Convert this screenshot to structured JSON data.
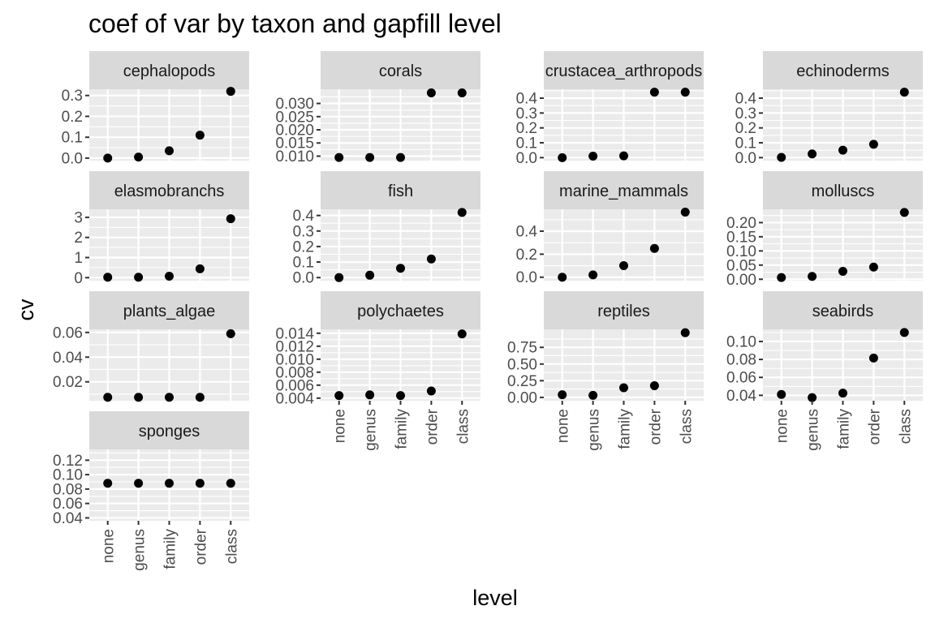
{
  "chart_data": {
    "type": "scatter",
    "title": "coef of var by taxon and gapfill level",
    "xlabel": "level",
    "ylabel": "cv",
    "categories": [
      "none",
      "genus",
      "family",
      "order",
      "class"
    ],
    "panel_background": "#ebebeb",
    "strip_background": "#d9d9d9",
    "point_color": "#000000",
    "panels": [
      {
        "name": "cephalopods",
        "ylim": [
          -0.012,
          0.33
        ],
        "yticks": [
          0.0,
          0.1,
          0.2,
          0.3
        ],
        "ytick_labels": [
          "0.0",
          "0.1",
          "0.2",
          "0.3"
        ],
        "values": [
          0.0,
          0.005,
          0.035,
          0.11,
          0.32
        ]
      },
      {
        "name": "corals",
        "ylim": [
          0.0083,
          0.0354
        ],
        "yticks": [
          0.01,
          0.015,
          0.02,
          0.025,
          0.03
        ],
        "ytick_labels": [
          "0.010",
          "0.015",
          "0.020",
          "0.025",
          "0.030"
        ],
        "values": [
          0.0095,
          0.0095,
          0.0095,
          0.034,
          0.034
        ]
      },
      {
        "name": "crustacea_arthropods",
        "ylim": [
          -0.02,
          0.46
        ],
        "yticks": [
          0.0,
          0.1,
          0.2,
          0.3,
          0.4
        ],
        "ytick_labels": [
          "0.0",
          "0.1",
          "0.2",
          "0.3",
          "0.4"
        ],
        "values": [
          0.0,
          0.01,
          0.012,
          0.44,
          0.44
        ]
      },
      {
        "name": "echinoderms",
        "ylim": [
          -0.02,
          0.46
        ],
        "yticks": [
          0.0,
          0.1,
          0.2,
          0.3,
          0.4
        ],
        "ytick_labels": [
          "0.0",
          "0.1",
          "0.2",
          "0.3",
          "0.4"
        ],
        "values": [
          0.002,
          0.025,
          0.05,
          0.09,
          0.44
        ]
      },
      {
        "name": "elasmobranchs",
        "ylim": [
          -0.15,
          3.4
        ],
        "yticks": [
          0,
          1,
          2,
          3
        ],
        "ytick_labels": [
          "0",
          "1",
          "2",
          "3"
        ],
        "values": [
          0.02,
          0.02,
          0.07,
          0.44,
          2.93
        ]
      },
      {
        "name": "fish",
        "ylim": [
          -0.02,
          0.44
        ],
        "yticks": [
          0.0,
          0.1,
          0.2,
          0.3,
          0.4
        ],
        "ytick_labels": [
          "0.0",
          "0.1",
          "0.2",
          "0.3",
          "0.4"
        ],
        "values": [
          0.0,
          0.015,
          0.06,
          0.12,
          0.42
        ]
      },
      {
        "name": "marine_mammals",
        "ylim": [
          -0.03,
          0.59
        ],
        "yticks": [
          0.0,
          0.2,
          0.4
        ],
        "ytick_labels": [
          "0.0",
          "0.2",
          "0.4"
        ],
        "values": [
          0.0,
          0.02,
          0.1,
          0.25,
          0.565
        ]
      },
      {
        "name": "molluscs",
        "ylim": [
          -0.005,
          0.247
        ],
        "yticks": [
          0.0,
          0.05,
          0.1,
          0.15,
          0.2
        ],
        "ytick_labels": [
          "0.00",
          "0.05",
          "0.10",
          "0.15",
          "0.20"
        ],
        "values": [
          0.006,
          0.01,
          0.028,
          0.043,
          0.236
        ]
      },
      {
        "name": "plants_algae",
        "ylim": [
          0.0047,
          0.0625
        ],
        "yticks": [
          0.02,
          0.04,
          0.06
        ],
        "ytick_labels": [
          "0.02",
          "0.04",
          "0.06"
        ],
        "values": [
          0.0075,
          0.0075,
          0.0075,
          0.0075,
          0.059
        ]
      },
      {
        "name": "polychaetes",
        "ylim": [
          0.0036,
          0.0146
        ],
        "yticks": [
          0.004,
          0.006,
          0.008,
          0.01,
          0.012,
          0.014
        ],
        "ytick_labels": [
          "0.004",
          "0.006",
          "0.008",
          "0.010",
          "0.012",
          "0.014"
        ],
        "values": [
          0.0044,
          0.0045,
          0.0044,
          0.0051,
          0.0139
        ]
      },
      {
        "name": "reptiles",
        "ylim": [
          -0.05,
          1.02
        ],
        "yticks": [
          0.0,
          0.25,
          0.5,
          0.75
        ],
        "ytick_labels": [
          "0.00",
          "0.25",
          "0.50",
          "0.75"
        ],
        "values": [
          0.04,
          0.03,
          0.145,
          0.175,
          0.97
        ]
      },
      {
        "name": "seabirds",
        "ylim": [
          0.034,
          0.1135
        ],
        "yticks": [
          0.04,
          0.06,
          0.08,
          0.1
        ],
        "ytick_labels": [
          "0.04",
          "0.06",
          "0.08",
          "0.10"
        ],
        "values": [
          0.041,
          0.0375,
          0.0425,
          0.0815,
          0.11
        ]
      },
      {
        "name": "sponges",
        "ylim": [
          0.036,
          0.135
        ],
        "yticks": [
          0.04,
          0.06,
          0.08,
          0.1,
          0.12
        ],
        "ytick_labels": [
          "0.04",
          "0.06",
          "0.08",
          "0.10",
          "0.12"
        ],
        "values": [
          0.088,
          0.088,
          0.088,
          0.088,
          0.088
        ]
      }
    ]
  }
}
